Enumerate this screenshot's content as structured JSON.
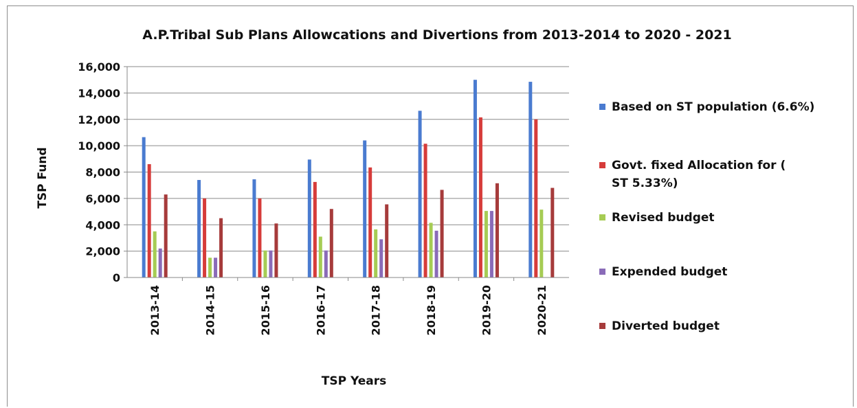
{
  "chart_data": {
    "type": "bar",
    "title": "A.P.Tribal Sub Plans Allowcations and Divertions from 2013-2014 to 2020 - 2021",
    "xlabel": "TSP Years",
    "ylabel": "TSP Fund",
    "ylim": [
      0,
      16000
    ],
    "yticks": [
      "0",
      "2,000",
      "4,000",
      "6,000",
      "8,000",
      "10,000",
      "12,000",
      "14,000",
      "16,000"
    ],
    "ytick_values": [
      0,
      2000,
      4000,
      6000,
      8000,
      10000,
      12000,
      14000,
      16000
    ],
    "grid": true,
    "legend_position": "right",
    "categories": [
      "2013-14",
      "2014-15",
      "2015-16",
      "2016-17",
      "2017-18",
      "2018-19",
      "2019-20",
      "2020-21"
    ],
    "series": [
      {
        "name": "Based on ST population (6.6%)",
        "color": "#4a7bd0",
        "values": [
          10650,
          7400,
          7450,
          8950,
          10400,
          12650,
          15000,
          14850
        ]
      },
      {
        "name": "Govt. fixed Allocation for (ST 5.33%)",
        "color": "#d63c3a",
        "values": [
          8600,
          6000,
          6000,
          7250,
          8350,
          10150,
          12150,
          12000
        ]
      },
      {
        "name": "Revised budget",
        "color": "#a6cc54",
        "values": [
          3500,
          1500,
          2050,
          3100,
          3650,
          4150,
          5050,
          5150
        ]
      },
      {
        "name": "Expended budget",
        "color": "#8a6bb8",
        "values": [
          2200,
          1500,
          2050,
          2050,
          2900,
          3550,
          5050,
          0
        ]
      },
      {
        "name": "Diverted budget",
        "color": "#a63b3b",
        "values": [
          6300,
          4500,
          4100,
          5200,
          5550,
          6650,
          7150,
          6800
        ]
      }
    ]
  }
}
